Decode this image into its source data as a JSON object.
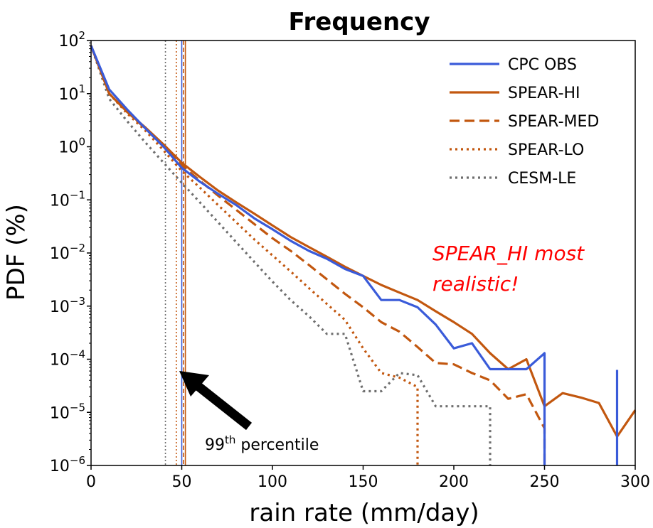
{
  "chart_data": {
    "type": "line",
    "title": "Frequency",
    "xlabel": "rain rate (mm/day)",
    "ylabel": "PDF (%)",
    "xlim": [
      0,
      300
    ],
    "ylim_log10": [
      -6,
      2
    ],
    "y_scale": "log",
    "x_ticks": [
      0,
      50,
      100,
      150,
      200,
      250,
      300
    ],
    "y_tick_labels": [
      {
        "exp": "2",
        "value": 100
      },
      {
        "exp": "1",
        "value": 10
      },
      {
        "exp": "0",
        "value": 1
      },
      {
        "exp": "−1",
        "value": 0.1
      },
      {
        "exp": "−2",
        "value": 0.01
      },
      {
        "exp": "−3",
        "value": 0.001
      },
      {
        "exp": "−4",
        "value": 0.0001
      },
      {
        "exp": "−5",
        "value": 1e-05
      },
      {
        "exp": "−6",
        "value": 1e-06
      }
    ],
    "grid": false,
    "legend_position": "top-right",
    "series": [
      {
        "name": "CPC OBS",
        "color": "#3a5bd9",
        "style": "solid",
        "points": [
          [
            0,
            80
          ],
          [
            10,
            12
          ],
          [
            20,
            5
          ],
          [
            30,
            2.2
          ],
          [
            40,
            1
          ],
          [
            50,
            0.4
          ],
          [
            60,
            0.22
          ],
          [
            70,
            0.13
          ],
          [
            80,
            0.08
          ],
          [
            90,
            0.045
          ],
          [
            100,
            0.028
          ],
          [
            110,
            0.017
          ],
          [
            120,
            0.011
          ],
          [
            130,
            0.0078
          ],
          [
            140,
            0.005
          ],
          [
            150,
            0.0037
          ],
          [
            160,
            0.0013
          ],
          [
            170,
            0.0013
          ],
          [
            180,
            0.00095
          ],
          [
            190,
            0.00045
          ],
          [
            200,
            0.00016
          ],
          [
            210,
            0.0002
          ],
          [
            220,
            6.5e-05
          ],
          [
            230,
            6.5e-05
          ],
          [
            240,
            6.5e-05
          ],
          [
            250,
            0.00013
          ],
          [
            250,
            1e-06
          ]
        ],
        "extra_segments": [
          [
            [
              290,
              6.3e-05
            ],
            [
              290,
              1e-06
            ]
          ]
        ]
      },
      {
        "name": "SPEAR-HI",
        "color": "#c2570f",
        "style": "solid",
        "points": [
          [
            0,
            80
          ],
          [
            10,
            10
          ],
          [
            20,
            4.5
          ],
          [
            30,
            2.3
          ],
          [
            40,
            1.1
          ],
          [
            50,
            0.5
          ],
          [
            60,
            0.27
          ],
          [
            70,
            0.15
          ],
          [
            80,
            0.09
          ],
          [
            90,
            0.055
          ],
          [
            100,
            0.033
          ],
          [
            110,
            0.02
          ],
          [
            120,
            0.013
          ],
          [
            130,
            0.0085
          ],
          [
            140,
            0.0055
          ],
          [
            150,
            0.0037
          ],
          [
            160,
            0.0025
          ],
          [
            170,
            0.0018
          ],
          [
            180,
            0.0013
          ],
          [
            190,
            0.0008
          ],
          [
            200,
            0.0005
          ],
          [
            210,
            0.0003
          ],
          [
            220,
            0.00013
          ],
          [
            230,
            6.5e-05
          ],
          [
            240,
            0.0001
          ],
          [
            250,
            1.3e-05
          ],
          [
            260,
            2.3e-05
          ],
          [
            270,
            1.9e-05
          ],
          [
            280,
            1.5e-05
          ],
          [
            290,
            3.5e-06
          ],
          [
            300,
            1.1e-05
          ]
        ]
      },
      {
        "name": "SPEAR-MED",
        "color": "#c2570f",
        "style": "dashed",
        "points": [
          [
            0,
            80
          ],
          [
            10,
            10
          ],
          [
            20,
            4.5
          ],
          [
            30,
            2.2
          ],
          [
            40,
            1
          ],
          [
            50,
            0.45
          ],
          [
            60,
            0.23
          ],
          [
            70,
            0.12
          ],
          [
            80,
            0.065
          ],
          [
            90,
            0.035
          ],
          [
            100,
            0.019
          ],
          [
            110,
            0.011
          ],
          [
            120,
            0.006
          ],
          [
            130,
            0.0032
          ],
          [
            140,
            0.0017
          ],
          [
            150,
            0.00095
          ],
          [
            160,
            0.0005
          ],
          [
            170,
            0.00033
          ],
          [
            180,
            0.00017
          ],
          [
            190,
            8.5e-05
          ],
          [
            200,
            8e-05
          ],
          [
            210,
            5.5e-05
          ],
          [
            220,
            4e-05
          ],
          [
            230,
            1.8e-05
          ],
          [
            240,
            2.2e-05
          ],
          [
            250,
            5e-06
          ],
          [
            250,
            1e-06
          ]
        ]
      },
      {
        "name": "SPEAR-LO",
        "color": "#c2570f",
        "style": "dotted",
        "points": [
          [
            0,
            80
          ],
          [
            10,
            10
          ],
          [
            20,
            4.2
          ],
          [
            30,
            2
          ],
          [
            40,
            0.85
          ],
          [
            50,
            0.35
          ],
          [
            60,
            0.17
          ],
          [
            70,
            0.08
          ],
          [
            80,
            0.038
          ],
          [
            90,
            0.018
          ],
          [
            100,
            0.009
          ],
          [
            110,
            0.0045
          ],
          [
            120,
            0.0022
          ],
          [
            130,
            0.0011
          ],
          [
            140,
            0.00055
          ],
          [
            150,
            0.00016
          ],
          [
            160,
            5.5e-05
          ],
          [
            170,
            4.5e-05
          ],
          [
            180,
            3e-05
          ],
          [
            180,
            1e-06
          ]
        ]
      },
      {
        "name": "CESM-LE",
        "color": "#6e6e6e",
        "style": "dotted",
        "points": [
          [
            0,
            80
          ],
          [
            10,
            8
          ],
          [
            20,
            3
          ],
          [
            30,
            1.2
          ],
          [
            40,
            0.5
          ],
          [
            50,
            0.21
          ],
          [
            60,
            0.09
          ],
          [
            70,
            0.038
          ],
          [
            80,
            0.016
          ],
          [
            90,
            0.0068
          ],
          [
            100,
            0.0029
          ],
          [
            110,
            0.0013
          ],
          [
            120,
            0.00065
          ],
          [
            130,
            0.0003
          ],
          [
            140,
            0.0003
          ],
          [
            150,
            2.5e-05
          ],
          [
            160,
            2.5e-05
          ],
          [
            170,
            5.5e-05
          ],
          [
            180,
            5e-05
          ],
          [
            190,
            1.3e-05
          ],
          [
            200,
            1.3e-05
          ],
          [
            210,
            1.3e-05
          ],
          [
            220,
            1.3e-05
          ],
          [
            220,
            1e-06
          ]
        ]
      }
    ],
    "percentile_lines": [
      {
        "series": "CESM-LE",
        "x": 41,
        "color": "#6e6e6e",
        "style": "dotted"
      },
      {
        "series": "SPEAR-LO",
        "x": 47,
        "color": "#c2570f",
        "style": "dotted"
      },
      {
        "series": "CPC OBS",
        "x": 50,
        "color": "#3a5bd9",
        "style": "solid"
      },
      {
        "series": "SPEAR-MED",
        "x": 51,
        "color": "#c2570f",
        "style": "dashed"
      },
      {
        "series": "SPEAR-HI",
        "x": 52,
        "color": "#c2570f",
        "style": "solid"
      }
    ],
    "annotation": {
      "line1": "SPEAR_HI most",
      "line2": "realistic!",
      "color": "#ff0000"
    },
    "arrow_label": {
      "prefix": "99",
      "superscript": "th",
      "suffix": " percentile"
    }
  }
}
